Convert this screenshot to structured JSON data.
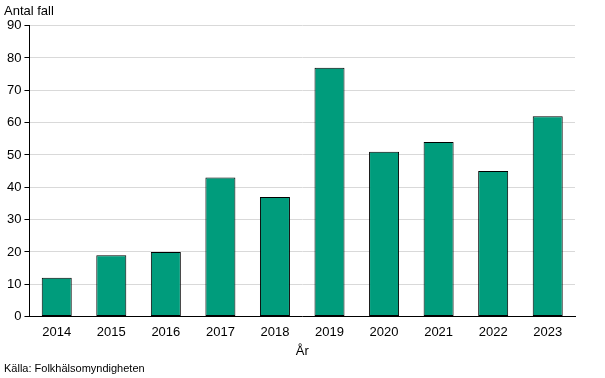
{
  "chart_data": {
    "type": "bar",
    "y_label": "Antal fall",
    "x_label": "År",
    "source": "Källa: Folkhälsomyndigheten",
    "categories": [
      "2014",
      "2015",
      "2016",
      "2017",
      "2018",
      "2019",
      "2020",
      "2021",
      "2022",
      "2023"
    ],
    "values": [
      12,
      19,
      20,
      43,
      37,
      77,
      51,
      54,
      45,
      62
    ],
    "color": "#009c7c",
    "ylim": [
      0,
      90
    ],
    "yticks": [
      0,
      10,
      20,
      30,
      40,
      50,
      60,
      70,
      80,
      90
    ],
    "grid": true
  }
}
